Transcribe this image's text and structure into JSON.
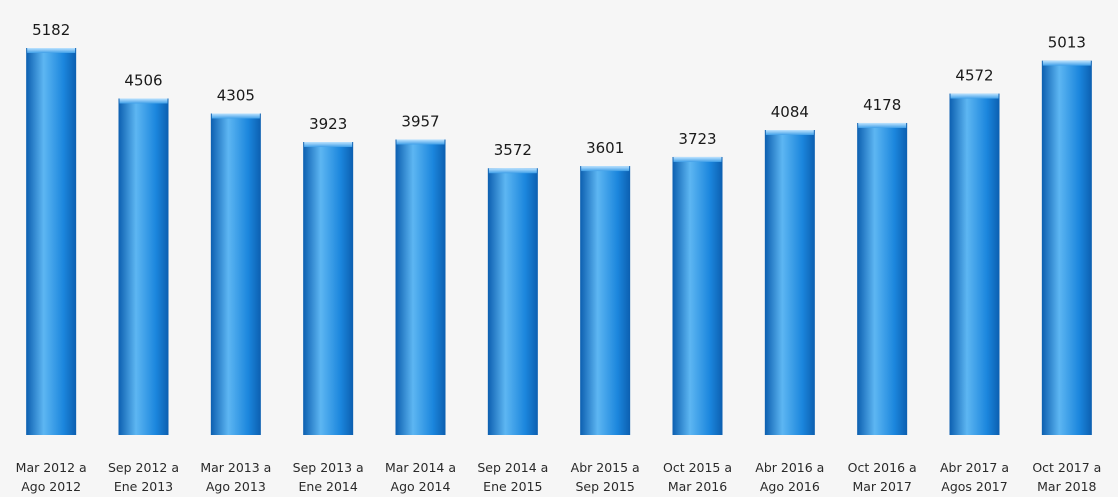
{
  "chart_data": {
    "type": "bar",
    "categories": [
      [
        "Mar 2012 a",
        "Ago 2012"
      ],
      [
        "Sep 2012 a",
        "Ene 2013"
      ],
      [
        "Mar 2013 a",
        "Ago 2013"
      ],
      [
        "Sep 2013 a",
        "Ene 2014"
      ],
      [
        "Mar 2014 a",
        "Ago 2014"
      ],
      [
        "Sep 2014 a",
        "Ene 2015"
      ],
      [
        "Abr 2015 a",
        "Sep 2015"
      ],
      [
        "Oct 2015 a",
        "Mar 2016"
      ],
      [
        "Abr 2016 a",
        "Ago 2016"
      ],
      [
        "Oct 2016 a",
        "Mar 2017"
      ],
      [
        "Abr 2017 a",
        "Agos 2017"
      ],
      [
        "Oct 2017 a",
        "Mar 2018"
      ]
    ],
    "values": [
      5182,
      4506,
      4305,
      3923,
      3957,
      3572,
      3601,
      3723,
      4084,
      4178,
      4572,
      5013
    ],
    "value_labels": [
      "5182",
      "4506",
      "4305",
      "3923",
      "3957",
      "3572",
      "3601",
      "3723",
      "4084",
      "4178",
      "4572",
      "5013"
    ],
    "bar_color": "#1b86dd",
    "bar_highlight": "#5db6f2",
    "bar_shadow": "#0c5fb0",
    "grid": false,
    "legend": "none"
  }
}
